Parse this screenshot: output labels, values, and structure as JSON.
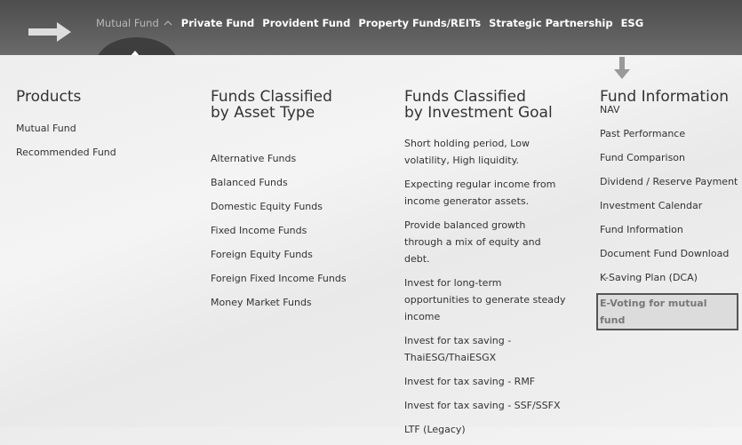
{
  "nav": {
    "items": [
      "Mutual Fund",
      "Private Fund",
      "Provident Fund",
      "Property Funds/REITs",
      "Strategic Partnership",
      "ESG"
    ]
  },
  "columns": [
    {
      "title_lines": [
        "Products"
      ],
      "links": [
        "Mutual Fund",
        "Recommended Fund"
      ]
    },
    {
      "title_lines": [
        "Funds Classified",
        "by Asset Type"
      ],
      "links": [
        "Alternative Funds",
        "Balanced Funds",
        "Domestic Equity Funds",
        "Fixed Income Funds",
        "Foreign Equity Funds",
        "Foreign Fixed Income Funds",
        "Money Market Funds"
      ]
    },
    {
      "title_lines": [
        "Funds Classified",
        "by Investment Goal"
      ],
      "links": [
        "Short holding period, Low volatility, High liquidity.",
        "Expecting regular income from income generator assets.",
        "Provide balanced growth through a mix of equity and debt.",
        "Invest for long-term opportunities to generate steady income",
        "Invest for tax saving - ThaiESG/ThaiESGX",
        "Invest for tax saving - RMF",
        "Invest for tax saving - SSF/SSFX",
        "LTF (Legacy)"
      ]
    },
    {
      "title_lines": [
        "Fund Information"
      ],
      "links": [
        "NAV",
        "Past Performance",
        "Fund Comparison",
        "Dividend / Reserve Payment",
        "Investment Calendar",
        "Fund Information",
        "Document Fund Download",
        "K-Saving Plan (DCA)",
        "E-Voting for mutual fund"
      ]
    }
  ]
}
